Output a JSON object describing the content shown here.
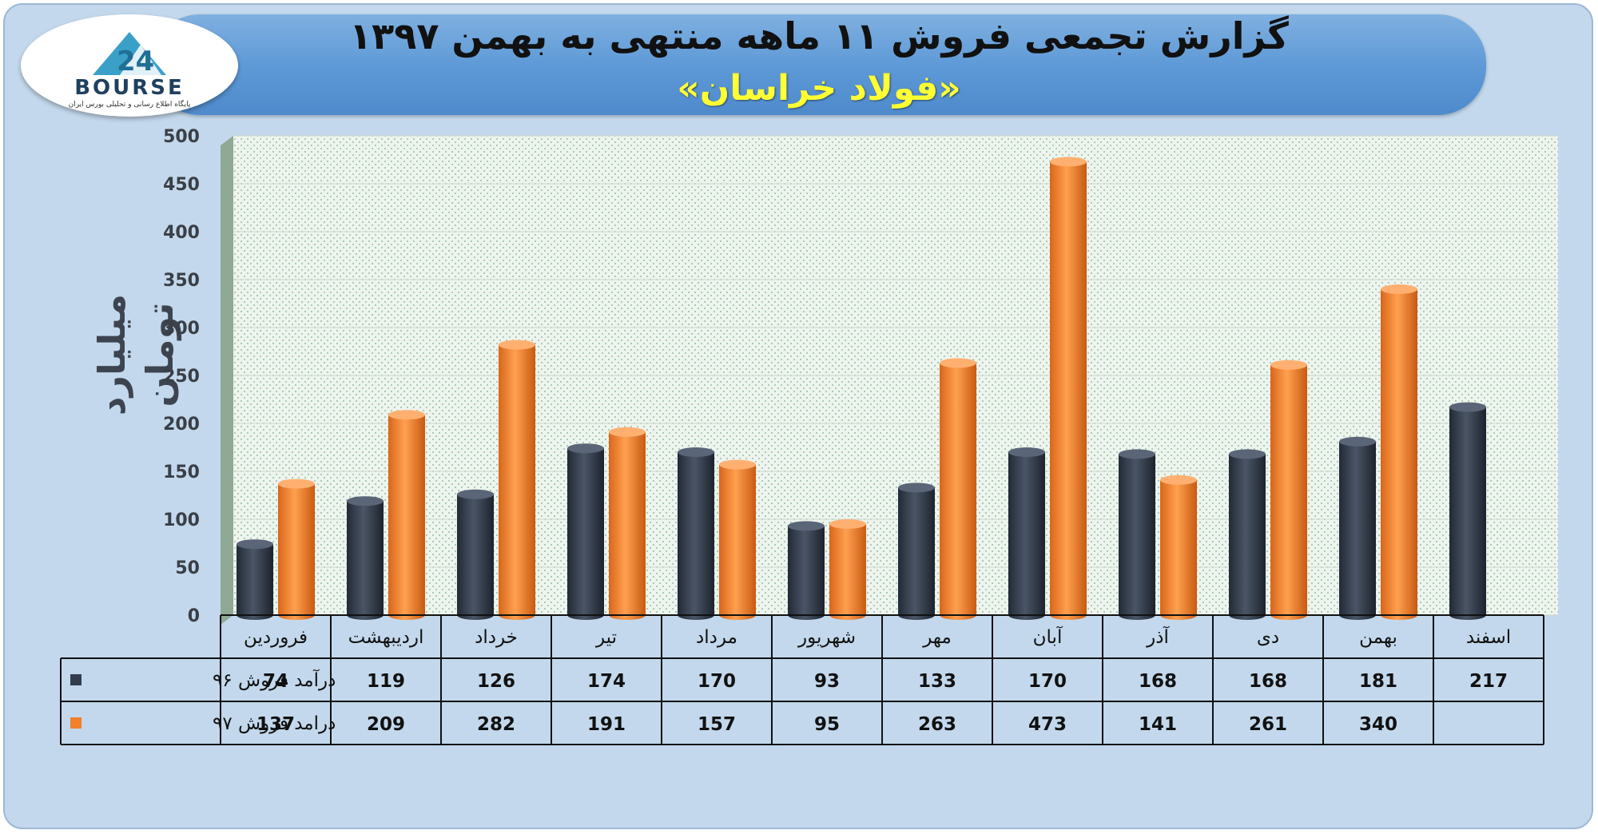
{
  "title": "گزارش تجمعی فروش ۱۱ ماهه منتهی به بهمن ۱۳۹۷",
  "subtitle": "«فولاد خراسان»",
  "logo": {
    "wordmark": "BOURSE",
    "tagline": "پایگاه اطلاع رسانی و تحلیلی بورس ایران"
  },
  "colors": {
    "series_96": "#333d4d",
    "series_97": "#f0802a",
    "banner": "#5c98d6",
    "background": "#c3d8ec"
  },
  "chart_data": {
    "type": "bar",
    "ylabel": "میلیارد تومان",
    "ylim": [
      0,
      500
    ],
    "yticks": [
      0,
      50,
      100,
      150,
      200,
      250,
      300,
      350,
      400,
      450,
      500
    ],
    "categories": [
      "فروردین",
      "اردیبهشت",
      "خرداد",
      "تیر",
      "مرداد",
      "شهریور",
      "مهر",
      "آبان",
      "آذر",
      "دی",
      "بهمن",
      "اسفند"
    ],
    "series": [
      {
        "name": "درآمد فروش ۹۶",
        "color": "#333d4d",
        "values": [
          74,
          119,
          126,
          174,
          170,
          93,
          133,
          170,
          168,
          168,
          181,
          217
        ]
      },
      {
        "name": "درامد فروش ۹۷",
        "color": "#f0802a",
        "values": [
          137,
          209,
          282,
          191,
          157,
          95,
          263,
          473,
          141,
          261,
          340,
          null
        ]
      }
    ],
    "grid": true,
    "legend": "data-table"
  }
}
